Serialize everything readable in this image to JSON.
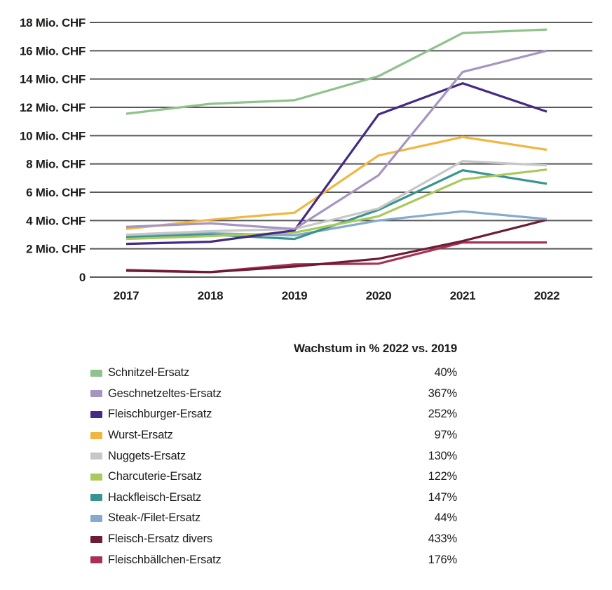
{
  "chart_data": {
    "type": "line",
    "title": "",
    "legend_header": "Wachstum in % 2022 vs. 2019",
    "x_categories": [
      "2017",
      "2018",
      "2019",
      "2020",
      "2021",
      "2022"
    ],
    "y_ticks": [
      {
        "value": 18,
        "label": "18 Mio. CHF"
      },
      {
        "value": 16,
        "label": "16 Mio. CHF"
      },
      {
        "value": 14,
        "label": "14 Mio. CHF"
      },
      {
        "value": 12,
        "label": "12 Mio. CHF"
      },
      {
        "value": 10,
        "label": "10 Mio. CHF"
      },
      {
        "value": 8,
        "label": "8 Mio. CHF"
      },
      {
        "value": 6,
        "label": "6 Mio. CHF"
      },
      {
        "value": 4,
        "label": "4 Mio. CHF"
      },
      {
        "value": 2,
        "label": "2 Mio. CHF"
      },
      {
        "value": 0,
        "label": "0"
      }
    ],
    "ylim": [
      0,
      18
    ],
    "y_unit": "Mio. CHF",
    "grid": "horizontal",
    "grid_color": "#58585a",
    "text_color": "#1d1d1b",
    "legend_position": "below",
    "series": [
      {
        "name": "Schnitzel-Ersatz",
        "color": "#8fc28d",
        "values": [
          11.55,
          12.25,
          12.5,
          14.2,
          17.25,
          17.5
        ],
        "growth_2022_vs_2019": "40%"
      },
      {
        "name": "Geschnetzeltes-Ersatz",
        "color": "#a795c1",
        "values": [
          3.55,
          3.8,
          3.4,
          7.2,
          14.5,
          16.0
        ],
        "growth_2022_vs_2019": "367%"
      },
      {
        "name": "Fleischburger-Ersatz",
        "color": "#452a85",
        "values": [
          2.35,
          2.5,
          3.3,
          11.5,
          13.7,
          11.7
        ],
        "growth_2022_vs_2019": "252%"
      },
      {
        "name": "Wurst-Ersatz",
        "color": "#f1b642",
        "values": [
          3.4,
          4.05,
          4.55,
          8.6,
          9.9,
          9.0
        ],
        "growth_2022_vs_2019": "97%"
      },
      {
        "name": "Nuggets-Ersatz",
        "color": "#c7c7c7",
        "values": [
          3.0,
          3.25,
          3.4,
          4.85,
          8.2,
          7.9
        ],
        "growth_2022_vs_2019": "130%"
      },
      {
        "name": "Charcuterie-Ersatz",
        "color": "#a9c95b",
        "values": [
          2.7,
          2.9,
          3.15,
          4.3,
          6.9,
          7.6
        ],
        "growth_2022_vs_2019": "122%"
      },
      {
        "name": "Hackfleisch-Ersatz",
        "color": "#37948f",
        "values": [
          2.8,
          3.0,
          2.7,
          4.75,
          7.55,
          6.6
        ],
        "growth_2022_vs_2019": "147%"
      },
      {
        "name": "Steak-/Filet-Ersatz",
        "color": "#84aacd",
        "values": [
          2.9,
          3.1,
          2.95,
          4.0,
          4.65,
          4.1
        ],
        "growth_2022_vs_2019": "44%"
      },
      {
        "name": "Fleisch-Ersatz divers",
        "color": "#6c1c33",
        "values": [
          0.45,
          0.35,
          0.75,
          1.3,
          2.55,
          4.05
        ],
        "growth_2022_vs_2019": "433%"
      },
      {
        "name": "Fleischbällchen-Ersatz",
        "color": "#a73354",
        "values": [
          0.5,
          0.35,
          0.9,
          0.95,
          2.45,
          2.45
        ],
        "growth_2022_vs_2019": "176%"
      }
    ]
  }
}
